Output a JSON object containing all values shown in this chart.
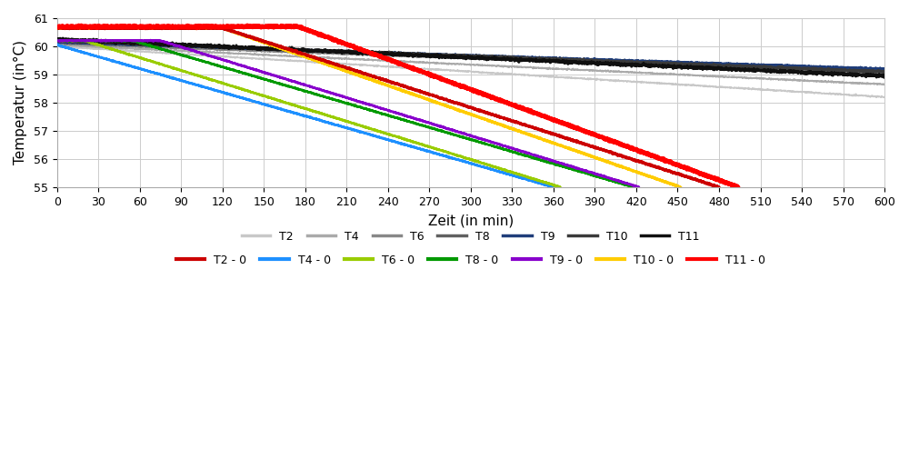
{
  "xlabel": "Zeit (in min)",
  "ylabel": "Temperatur (in°C)",
  "xlim": [
    0,
    600
  ],
  "ylim": [
    55,
    61
  ],
  "xticks": [
    0,
    30,
    60,
    90,
    120,
    150,
    180,
    210,
    240,
    270,
    300,
    330,
    360,
    390,
    420,
    450,
    480,
    510,
    540,
    570,
    600
  ],
  "yticks": [
    55,
    56,
    57,
    58,
    59,
    60,
    61
  ],
  "gray_series": {
    "T2": {
      "color": "#c8c8c8",
      "lw": 1.2,
      "start": 60.0,
      "end": 58.2,
      "noise": 0.012
    },
    "T4": {
      "color": "#aaaaaa",
      "lw": 1.2,
      "start": 60.05,
      "end": 58.65,
      "noise": 0.012
    },
    "T6": {
      "color": "#888888",
      "lw": 1.5,
      "start": 60.1,
      "end": 59.05,
      "noise": 0.012
    },
    "T8": {
      "color": "#606060",
      "lw": 1.8,
      "start": 60.15,
      "end": 59.15,
      "noise": 0.012
    },
    "T9": {
      "color": "#1f3d7a",
      "lw": 1.8,
      "start": 60.15,
      "end": 59.2,
      "noise": 0.012
    },
    "T10": {
      "color": "#3a3a3a",
      "lw": 2.0,
      "start": 60.2,
      "end": 59.1,
      "noise": 0.018
    },
    "T11": {
      "color": "#101010",
      "lw": 2.2,
      "start": 60.25,
      "end": 58.95,
      "noise": 0.022
    }
  },
  "color_series": {
    "T4-0": {
      "color": "#1e90ff",
      "lw": 1.8,
      "start": 60.05,
      "flat_end": 0,
      "drop_end": 360,
      "end": 55.0,
      "noise": 0.008
    },
    "T6-0": {
      "color": "#99cc00",
      "lw": 1.8,
      "start": 60.2,
      "flat_end": 20,
      "drop_end": 365,
      "end": 55.0,
      "noise": 0.008
    },
    "T8-0": {
      "color": "#009900",
      "lw": 1.8,
      "start": 60.2,
      "flat_end": 55,
      "drop_end": 418,
      "end": 55.0,
      "noise": 0.008
    },
    "T9-0": {
      "color": "#8800cc",
      "lw": 1.8,
      "start": 60.2,
      "flat_end": 75,
      "drop_end": 422,
      "end": 55.0,
      "noise": 0.008
    },
    "T10-0": {
      "color": "#ffcc00",
      "lw": 2.2,
      "start": 60.65,
      "flat_end": 120,
      "drop_end": 452,
      "end": 55.0,
      "noise": 0.008
    },
    "T2-0": {
      "color": "#cc0000",
      "lw": 2.2,
      "start": 60.65,
      "flat_end": 120,
      "drop_end": 480,
      "end": 55.0,
      "noise": 0.012
    },
    "T11-0": {
      "color": "#ff0000",
      "lw": 3.2,
      "start": 60.7,
      "flat_end": 175,
      "drop_end": 494,
      "end": 55.0,
      "noise": 0.015
    }
  },
  "legend_row1": [
    "T2",
    "T4",
    "T6",
    "T8",
    "T9",
    "T10",
    "T11"
  ],
  "legend_row2": [
    "T2 - 0",
    "T4 - 0",
    "T6 - 0",
    "T8 - 0",
    "T9 - 0",
    "T10 - 0",
    "T11 - 0"
  ],
  "legend_row2_keys": [
    "T2-0",
    "T4-0",
    "T6-0",
    "T8-0",
    "T9-0",
    "T10-0",
    "T11-0"
  ]
}
